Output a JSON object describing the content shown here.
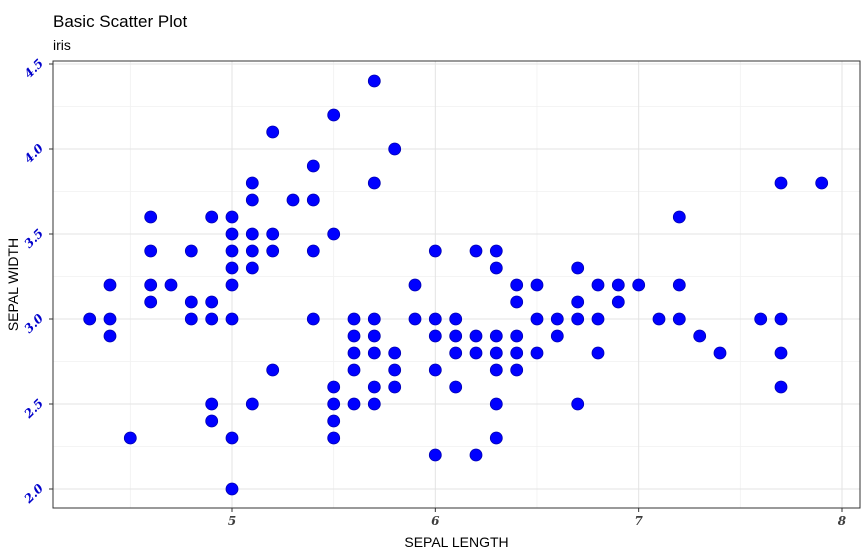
{
  "chart_data": {
    "type": "scatter",
    "title": "Basic Scatter Plot",
    "subtitle": "iris",
    "xlabel": "SEPAL LENGTH",
    "ylabel": "SEPAL WIDTH",
    "xlim": [
      4.2,
      8.0
    ],
    "ylim": [
      1.9,
      4.5
    ],
    "x_ticks": [
      5,
      6,
      7,
      8
    ],
    "x_tick_labels": [
      "5",
      "6",
      "7",
      "8"
    ],
    "y_ticks": [
      2.0,
      2.5,
      3.0,
      3.5,
      4.0,
      4.5
    ],
    "y_tick_labels": [
      "2.0",
      "2.5",
      "3.0",
      "3.5",
      "4.0",
      "4.5"
    ],
    "grid": true,
    "point_color": "#0000ff",
    "x_tick_color": "#3d3d3d",
    "y_tick_color": "#0000cc",
    "points": [
      [
        4.3,
        3.0
      ],
      [
        4.4,
        3.2
      ],
      [
        4.4,
        3.0
      ],
      [
        4.4,
        2.9
      ],
      [
        4.5,
        2.3
      ],
      [
        4.6,
        3.6
      ],
      [
        4.6,
        3.4
      ],
      [
        4.6,
        3.2
      ],
      [
        4.6,
        3.1
      ],
      [
        4.7,
        3.2
      ],
      [
        4.8,
        3.4
      ],
      [
        4.8,
        3.1
      ],
      [
        4.8,
        3.0
      ],
      [
        4.9,
        3.6
      ],
      [
        4.9,
        3.1
      ],
      [
        4.9,
        3.0
      ],
      [
        4.9,
        2.5
      ],
      [
        4.9,
        2.4
      ],
      [
        5.0,
        3.6
      ],
      [
        5.0,
        3.5
      ],
      [
        5.0,
        3.4
      ],
      [
        5.0,
        3.3
      ],
      [
        5.0,
        3.2
      ],
      [
        5.0,
        3.0
      ],
      [
        5.0,
        2.3
      ],
      [
        5.0,
        2.0
      ],
      [
        5.1,
        3.8
      ],
      [
        5.1,
        3.7
      ],
      [
        5.1,
        3.5
      ],
      [
        5.1,
        3.4
      ],
      [
        5.1,
        3.3
      ],
      [
        5.1,
        2.5
      ],
      [
        5.2,
        4.1
      ],
      [
        5.2,
        3.5
      ],
      [
        5.2,
        3.4
      ],
      [
        5.2,
        2.7
      ],
      [
        5.3,
        3.7
      ],
      [
        5.4,
        3.9
      ],
      [
        5.4,
        3.7
      ],
      [
        5.4,
        3.4
      ],
      [
        5.4,
        3.0
      ],
      [
        5.5,
        4.2
      ],
      [
        5.5,
        3.5
      ],
      [
        5.5,
        2.6
      ],
      [
        5.5,
        2.5
      ],
      [
        5.5,
        2.4
      ],
      [
        5.5,
        2.3
      ],
      [
        5.6,
        3.0
      ],
      [
        5.6,
        2.9
      ],
      [
        5.6,
        2.8
      ],
      [
        5.6,
        2.7
      ],
      [
        5.6,
        2.5
      ],
      [
        5.7,
        4.4
      ],
      [
        5.7,
        3.8
      ],
      [
        5.7,
        3.0
      ],
      [
        5.7,
        2.9
      ],
      [
        5.7,
        2.8
      ],
      [
        5.7,
        2.6
      ],
      [
        5.7,
        2.5
      ],
      [
        5.8,
        4.0
      ],
      [
        5.8,
        2.8
      ],
      [
        5.8,
        2.7
      ],
      [
        5.8,
        2.6
      ],
      [
        5.9,
        3.2
      ],
      [
        5.9,
        3.0
      ],
      [
        6.0,
        3.4
      ],
      [
        6.0,
        3.0
      ],
      [
        6.0,
        2.9
      ],
      [
        6.0,
        2.7
      ],
      [
        6.0,
        2.2
      ],
      [
        6.1,
        3.0
      ],
      [
        6.1,
        2.9
      ],
      [
        6.1,
        2.8
      ],
      [
        6.1,
        2.6
      ],
      [
        6.2,
        3.4
      ],
      [
        6.2,
        2.9
      ],
      [
        6.2,
        2.8
      ],
      [
        6.2,
        2.2
      ],
      [
        6.3,
        3.4
      ],
      [
        6.3,
        3.3
      ],
      [
        6.3,
        2.9
      ],
      [
        6.3,
        2.8
      ],
      [
        6.3,
        2.7
      ],
      [
        6.3,
        2.5
      ],
      [
        6.3,
        2.3
      ],
      [
        6.4,
        3.2
      ],
      [
        6.4,
        3.1
      ],
      [
        6.4,
        2.9
      ],
      [
        6.4,
        2.8
      ],
      [
        6.4,
        2.7
      ],
      [
        6.5,
        3.2
      ],
      [
        6.5,
        3.0
      ],
      [
        6.5,
        2.8
      ],
      [
        6.6,
        3.0
      ],
      [
        6.6,
        2.9
      ],
      [
        6.7,
        3.3
      ],
      [
        6.7,
        3.1
      ],
      [
        6.7,
        3.0
      ],
      [
        6.7,
        2.5
      ],
      [
        6.8,
        3.2
      ],
      [
        6.8,
        3.0
      ],
      [
        6.8,
        2.8
      ],
      [
        6.9,
        3.2
      ],
      [
        6.9,
        3.1
      ],
      [
        7.0,
        3.2
      ],
      [
        7.1,
        3.0
      ],
      [
        7.2,
        3.6
      ],
      [
        7.2,
        3.2
      ],
      [
        7.2,
        3.0
      ],
      [
        7.3,
        2.9
      ],
      [
        7.4,
        2.8
      ],
      [
        7.6,
        3.0
      ],
      [
        7.7,
        3.8
      ],
      [
        7.7,
        3.0
      ],
      [
        7.7,
        2.8
      ],
      [
        7.7,
        2.6
      ],
      [
        7.9,
        3.8
      ]
    ]
  }
}
